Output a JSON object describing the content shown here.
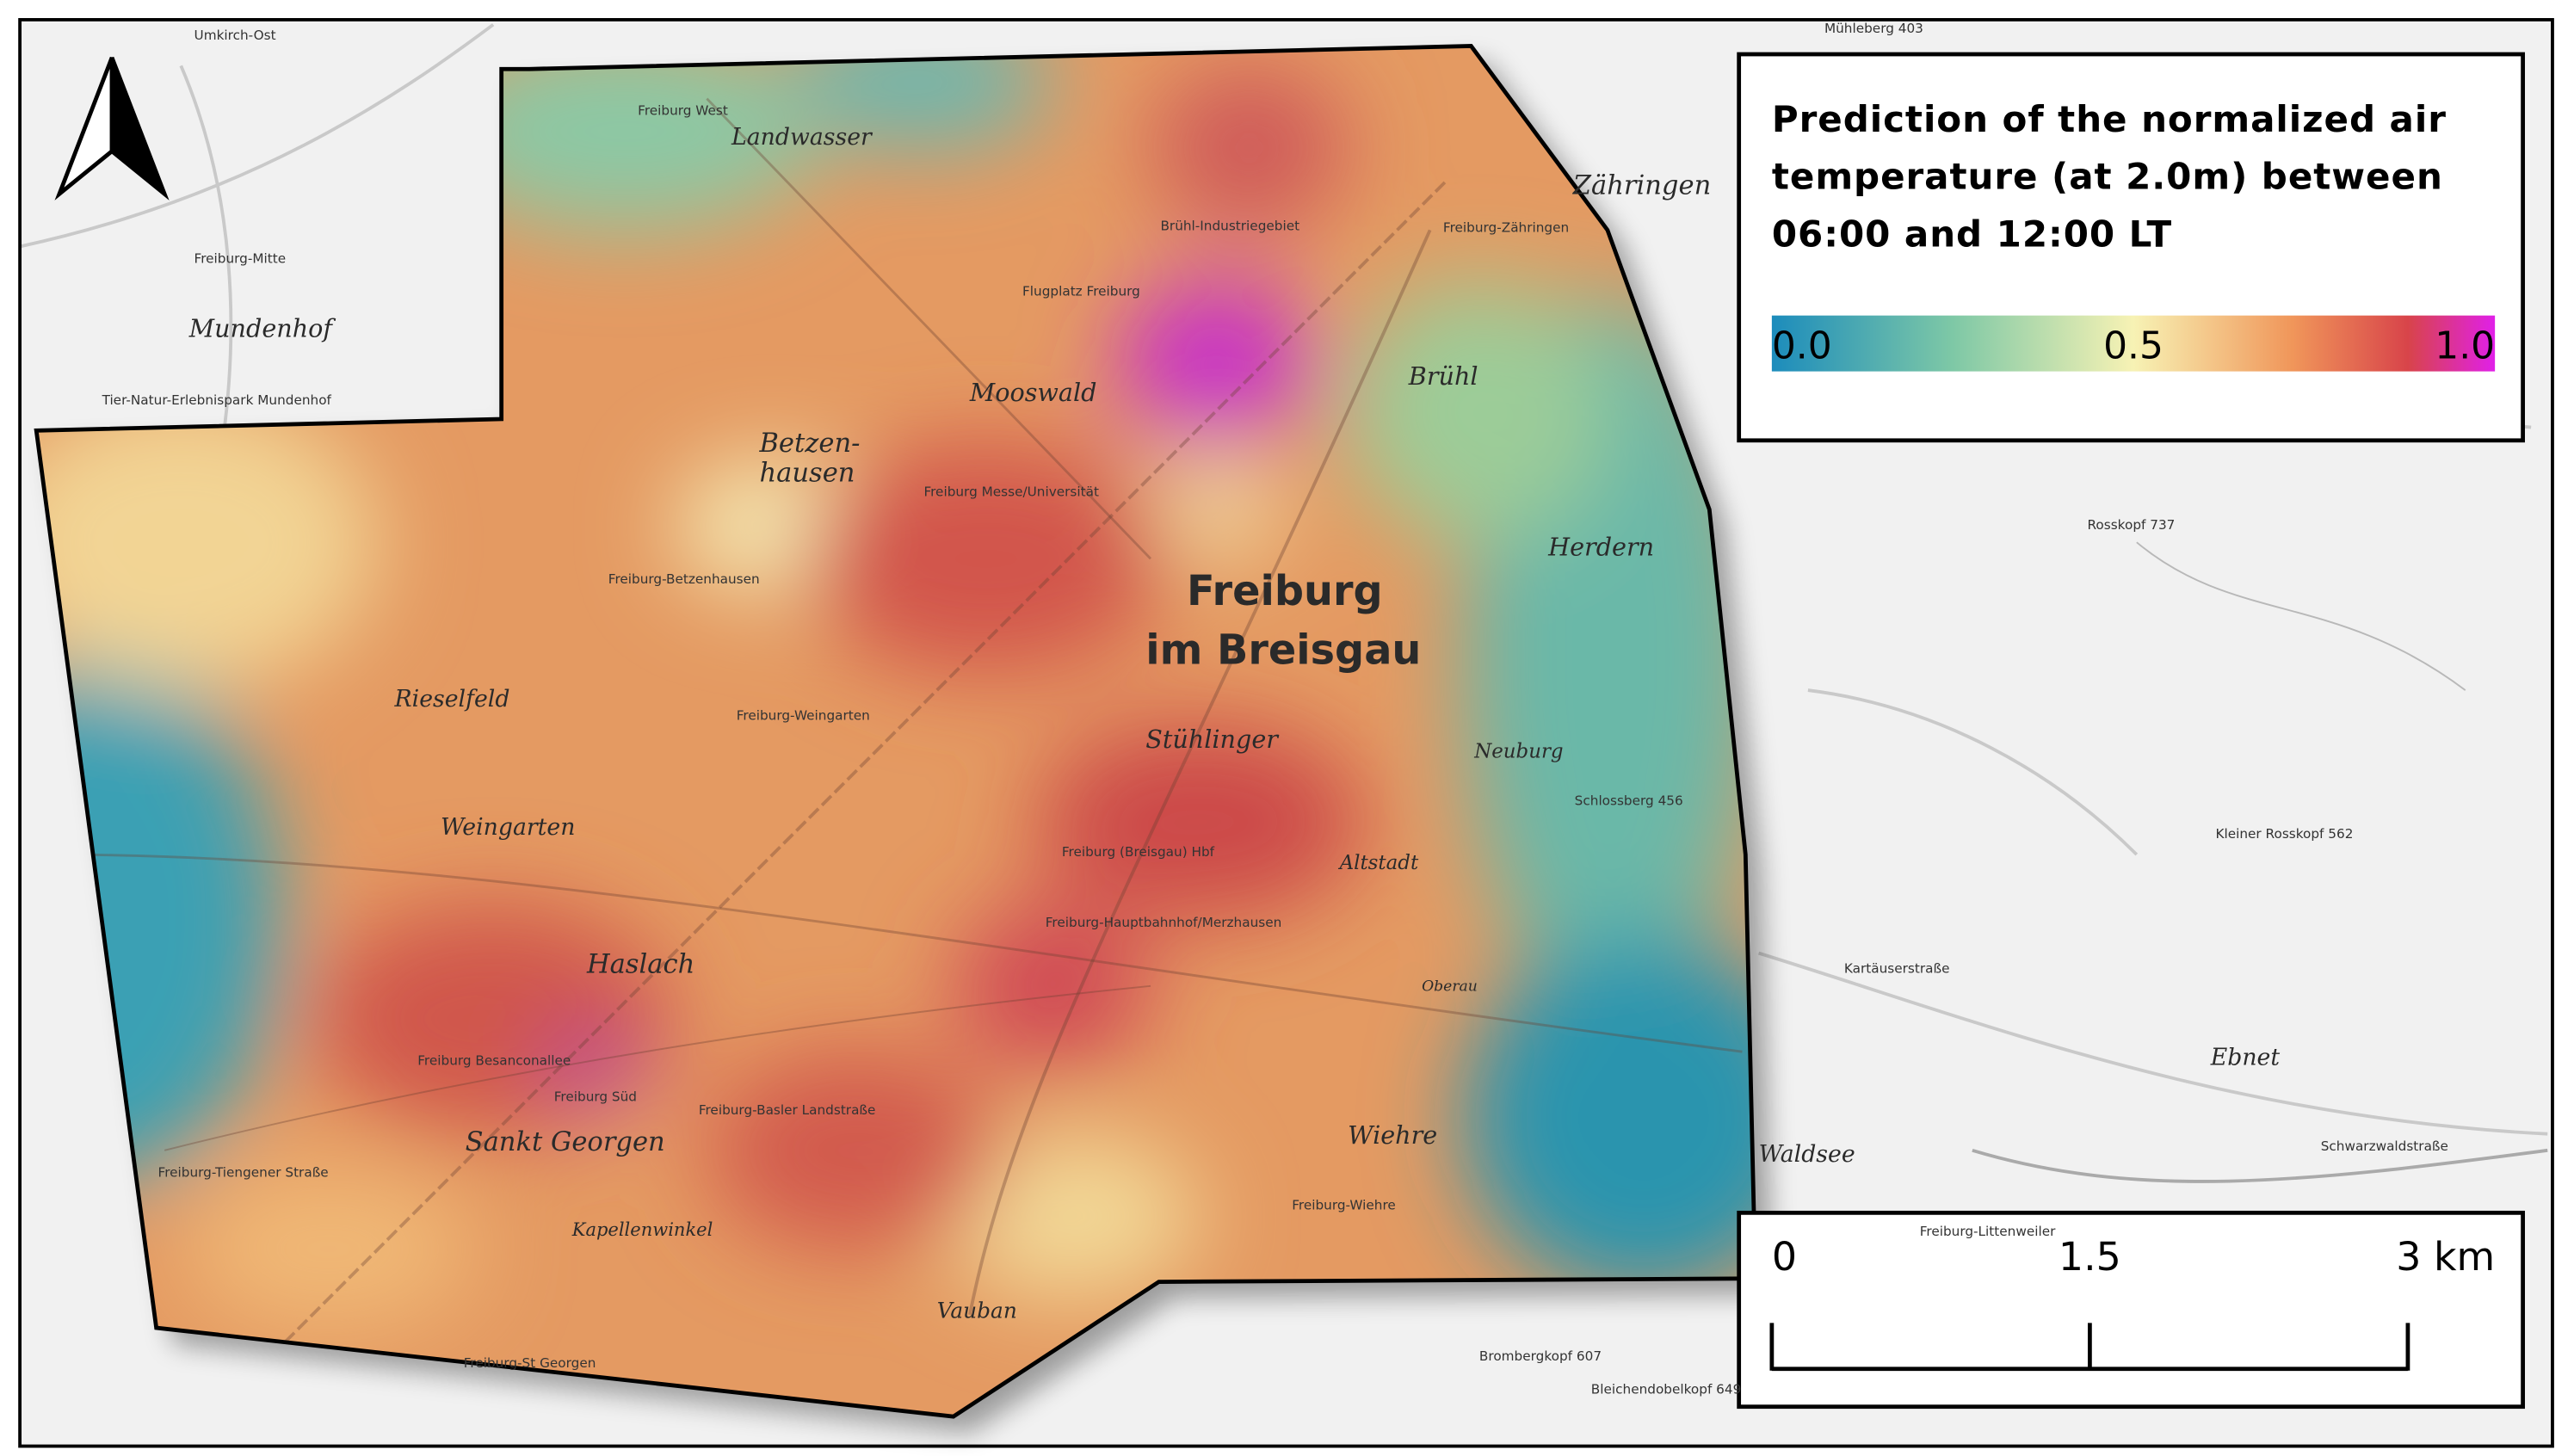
{
  "map": {
    "places": [
      "Landwasser",
      "Mundenhof",
      "Mooswald",
      "Betzen-",
      "hausen",
      "Brühl",
      "Zähringen",
      "Herdern",
      "Freiburg",
      "im Breisgau",
      "Rieselfeld",
      "Weingarten",
      "Stühlinger",
      "Neuburg",
      "Haslach",
      "Sankt Georgen",
      "Wiehre",
      "Vauban",
      "Waldsee",
      "Ebnet",
      "Altstadt",
      "Kapellenwinkel",
      "Oberau"
    ],
    "small_labels": [
      "Umkirch-Ost",
      "Freiburg West",
      "Freiburg-Mitte",
      "Brühl-Industriegebiet",
      "Freiburg Messe/Universität",
      "Freiburg (Breisgau) Hbf",
      "Freiburg-Wiehre",
      "Freiburg-St Georgen",
      "Freiburg-Zähringen",
      "Tier-Natur-Erlebnispark Mundenhof",
      "Schlossberg 456",
      "Kleiner Rosskopf 562",
      "Rosskopf 737",
      "Brombergkopf 607",
      "Bleichendobelkopf 649",
      "Freiburg-Littenweiler",
      "Freiburg-Tiengener Straße",
      "Freiburg Süd",
      "Flugplatz Freiburg",
      "Freiburg-Betzenhausen",
      "Freiburg-Weingarten",
      "Freiburg Besanconallee",
      "Freiburg-Basler Landstraße",
      "Freiburg-Hauptbahnhof/Merzhausen",
      "Mühleberg 403",
      "Kartäuserstraße",
      "Schwarzwaldstraße"
    ]
  },
  "legend": {
    "title_lines": [
      "Prediction of the normalized air",
      "temperature (at 2.0m) between",
      "06:00 and 12:00 LT"
    ],
    "range": [
      0,
      1
    ],
    "ticks": [
      {
        "value": 0,
        "label": "0.0"
      },
      {
        "value": 0.5,
        "label": "0.5"
      },
      {
        "value": 1,
        "label": "1.0"
      }
    ]
  },
  "scale_bar": {
    "range": [
      0,
      3
    ],
    "ticks": [
      0,
      1.5,
      {
        "value": 3,
        "label": "3 km"
      }
    ]
  }
}
